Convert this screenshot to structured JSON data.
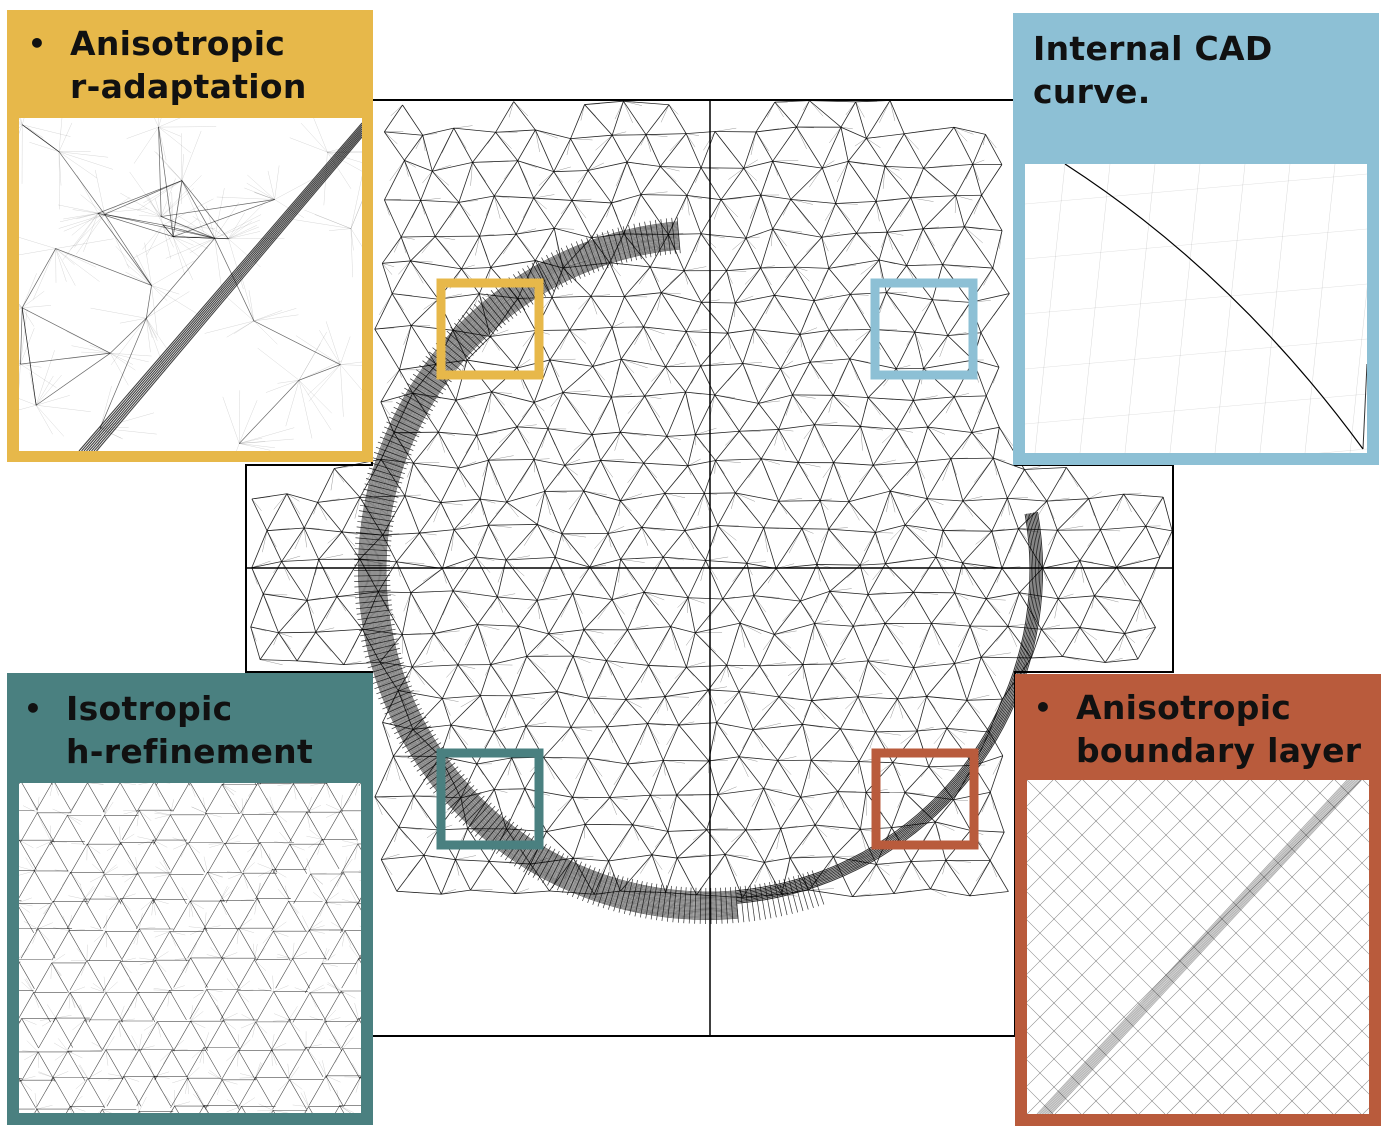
{
  "colors": {
    "yellow": "#e7b84a",
    "blue": "#8dc0d5",
    "teal": "#4a8080",
    "rust": "#b95b3c",
    "mesh": "#000000"
  },
  "panels": {
    "top_left": {
      "bullet": "•",
      "line1": "Anisotropic",
      "line2": "r-adaptation"
    },
    "top_right": {
      "line1": "Internal CAD",
      "line2": "curve."
    },
    "bottom_left": {
      "bullet": "•",
      "line1": "Isotropic",
      "line2": "h-refinement"
    },
    "bottom_right": {
      "bullet": "•",
      "line1": "Anisotropic",
      "line2": "boundary layer"
    }
  }
}
